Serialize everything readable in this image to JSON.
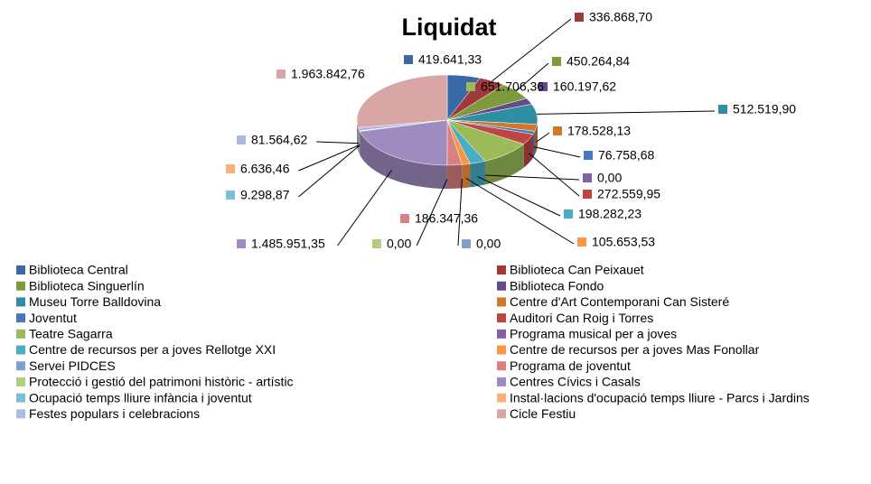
{
  "chart_data": {
    "type": "pie",
    "title": "Liquidat",
    "categories": [
      "Biblioteca Central",
      "Biblioteca Can Peixauet",
      "Biblioteca Singuerlín",
      "Biblioteca Fondo",
      "Museu Torre Balldovina",
      "Centre d'Art Contemporani Can Sisteré",
      "Joventut",
      "Auditori Can Roig i Torres",
      "Teatre Sagarra",
      "Programa musical per a joves",
      "Centre de recursos per a joves Rellotge XXI",
      "Centre de recursos per a joves Mas Fonollar",
      "Servei PIDCES",
      "Programa de joventut",
      "Protecció i gestió del patrimoni històric - artístic",
      "Centres Cívics i Casals",
      "Ocupació temps lliure infància i joventut",
      "Instal·lacions d'ocupació temps lliure - Parcs i Jardins",
      "Festes populars i celebracions",
      "Cicle Festiu"
    ],
    "values": [
      419641.33,
      336868.7,
      450264.84,
      160197.62,
      512519.9,
      178528.13,
      76758.68,
      272559.95,
      651706.36,
      0,
      198282.23,
      105653.53,
      0,
      186347.36,
      0,
      1485951.35,
      9298.87,
      6636.46,
      81564.62,
      1963842.76
    ],
    "value_labels": [
      "419.641,33",
      "336.868,70",
      "450.264,84",
      "160.197,62",
      "512.519,90",
      "178.528,13",
      "76.758,68",
      "272.559,95",
      "651.706,36",
      "0,00",
      "198.282,23",
      "105.653,53",
      "0,00",
      "186.347,36",
      "0,00",
      "1.485.951,35",
      "9.298,87",
      "6.636,46",
      "81.564,62",
      "1.963.842,76"
    ],
    "colors": [
      "#376aa6",
      "#a03a3a",
      "#7e9a3c",
      "#664a88",
      "#2e8ea2",
      "#cf782c",
      "#4877bd",
      "#bf4444",
      "#9bbb59",
      "#7f63a1",
      "#4bacc6",
      "#f79646",
      "#7f9fd0",
      "#d98080",
      "#b2cc82",
      "#9e8bc0",
      "#7ebdd6",
      "#f9b07a",
      "#a9bce0",
      "#d9a6a6"
    ],
    "legend": "bottom"
  }
}
